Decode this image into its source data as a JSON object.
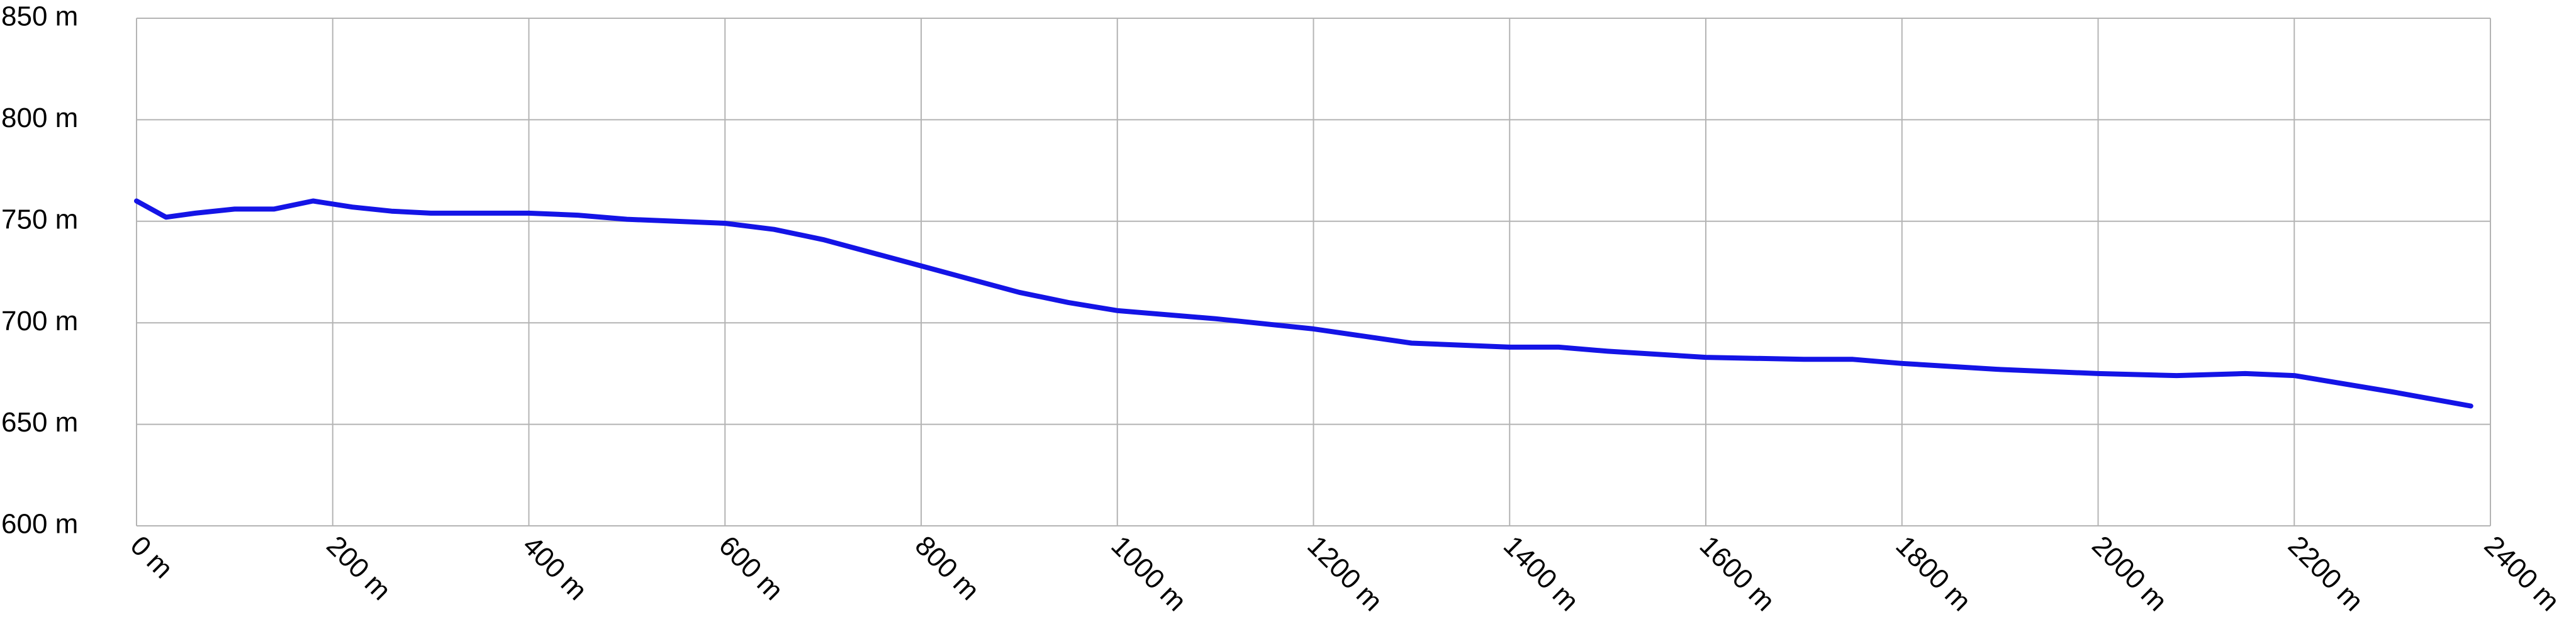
{
  "chart_data": {
    "type": "line",
    "x": [
      0,
      30,
      60,
      100,
      140,
      180,
      220,
      260,
      300,
      400,
      450,
      500,
      600,
      650,
      700,
      800,
      900,
      950,
      1000,
      1100,
      1200,
      1300,
      1400,
      1450,
      1500,
      1600,
      1700,
      1750,
      1800,
      1900,
      2000,
      2080,
      2150,
      2200,
      2300,
      2380
    ],
    "series": [
      {
        "color": "#1414e6",
        "values": [
          760,
          752,
          754,
          756,
          756,
          760,
          757,
          755,
          754,
          754,
          753,
          751,
          749,
          746,
          741,
          728,
          715,
          710,
          706,
          702,
          697,
          690,
          688,
          688,
          686,
          683,
          682,
          682,
          680,
          677,
          675,
          674,
          675,
          674,
          666,
          659
        ]
      }
    ],
    "xlim": [
      0,
      2400
    ],
    "ylim": [
      600,
      850
    ],
    "xticks": [
      {
        "value": 0,
        "label": "0 m"
      },
      {
        "value": 200,
        "label": "200 m"
      },
      {
        "value": 400,
        "label": "400 m"
      },
      {
        "value": 600,
        "label": "600 m"
      },
      {
        "value": 800,
        "label": "800 m"
      },
      {
        "value": 1000,
        "label": "1000 m"
      },
      {
        "value": 1200,
        "label": "1200 m"
      },
      {
        "value": 1400,
        "label": "1400 m"
      },
      {
        "value": 1600,
        "label": "1600 m"
      },
      {
        "value": 1800,
        "label": "1800 m"
      },
      {
        "value": 2000,
        "label": "2000 m"
      },
      {
        "value": 2200,
        "label": "2200 m"
      },
      {
        "value": 2400,
        "label": "2400 m"
      }
    ],
    "yticks": [
      {
        "value": 600,
        "label": "600 m"
      },
      {
        "value": 650,
        "label": "650 m"
      },
      {
        "value": 700,
        "label": "700 m"
      },
      {
        "value": 750,
        "label": "750 m"
      },
      {
        "value": 800,
        "label": "800 m"
      },
      {
        "value": 850,
        "label": "850 m"
      }
    ],
    "grid": true
  }
}
